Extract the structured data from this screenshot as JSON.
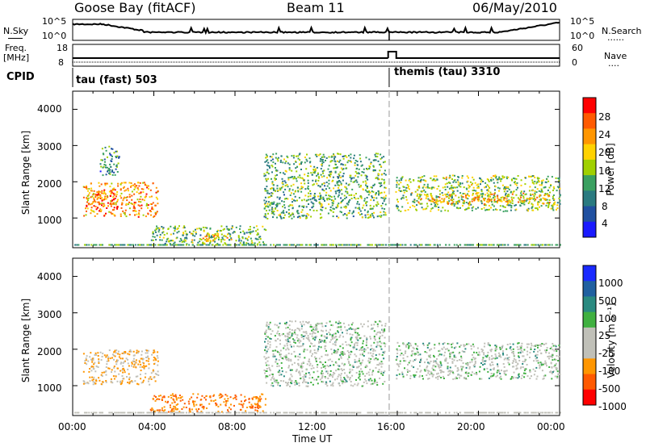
{
  "header": {
    "station": "Goose Bay (fitACF)",
    "beam": "Beam 11",
    "date": "06/May/2010"
  },
  "noise_panel": {
    "left_label": "N.Sky",
    "right_label": "N.Search",
    "left_ticks": [
      "10^5",
      "10^0"
    ],
    "right_ticks": [
      "10^5",
      "10^0"
    ],
    "right_dots": "......"
  },
  "freq_panel": {
    "left_label_line1": "Freq.",
    "left_label_line2": "[MHz]",
    "left_ticks": [
      "18",
      "8"
    ],
    "right_ticks": [
      "60",
      "0"
    ],
    "right_label": "Nave",
    "right_dots": "...."
  },
  "cpid_panel": {
    "label": "CPID",
    "segments": [
      {
        "name": "tau (fast)",
        "id": "503",
        "text": "tau (fast) 503"
      },
      {
        "name": "themis (tau)",
        "id": "3310",
        "text": "themis (tau) 3310"
      }
    ]
  },
  "time_axis": {
    "label": "Time UT",
    "ticks": [
      "00:00",
      "04:00",
      "08:00",
      "12:00",
      "16:00",
      "20:00",
      "00:00"
    ]
  },
  "range_axis": {
    "label": "Slant Range [km]",
    "ticks": [
      "4000",
      "3000",
      "2000",
      "1000"
    ]
  },
  "power_colorbar": {
    "label": "Power [dB]",
    "ticks": [
      "28",
      "24",
      "20",
      "16",
      "12",
      "8",
      "4"
    ],
    "colors": [
      "#ff0000",
      "#ff5a00",
      "#ff9600",
      "#ffd200",
      "#a0d000",
      "#3aa060",
      "#2a7a80",
      "#2050a0",
      "#1a1aff"
    ]
  },
  "velocity_colorbar": {
    "label": "Velocity [m s⁻¹]",
    "ticks": [
      "1000",
      "500",
      "100",
      "25",
      "-25",
      "-100",
      "-500",
      "-1000"
    ],
    "colors": [
      "#1a2aff",
      "#2060a0",
      "#2a8a80",
      "#40b040",
      "#c0c0b8",
      "#c0c0b8",
      "#ff9600",
      "#ff5a00",
      "#ff0000"
    ]
  },
  "chart_data": {
    "type": "heatmap",
    "title": "Goose Bay (fitACF)",
    "xlabel": "Time UT",
    "ylabel": "Slant Range [km]",
    "xlim_hours": [
      0,
      24
    ],
    "ylim_km": [
      180,
      4500
    ],
    "mode_change_hour": 15.6,
    "power_regions": [
      {
        "t0": 0.5,
        "t1": 4.2,
        "r0": 1050,
        "r1": 2000,
        "value_dB": 22
      },
      {
        "t0": 1.0,
        "t1": 2.2,
        "r0": 1250,
        "r1": 1800,
        "value_dB": 26
      },
      {
        "t0": 1.3,
        "t1": 2.3,
        "r0": 2200,
        "r1": 3000,
        "value_dB": 8
      },
      {
        "t0": 3.8,
        "t1": 9.5,
        "r0": 300,
        "r1": 800,
        "value_dB": 12
      },
      {
        "t0": 5.8,
        "t1": 7.8,
        "r0": 380,
        "r1": 600,
        "value_dB": 20
      },
      {
        "t0": 9.4,
        "t1": 15.4,
        "r0": 1000,
        "r1": 2800,
        "value_dB": 12
      },
      {
        "t0": 15.9,
        "t1": 24.0,
        "r0": 1200,
        "r1": 2200,
        "value_dB": 14
      },
      {
        "t0": 17.0,
        "t1": 23.5,
        "r0": 1400,
        "r1": 1700,
        "value_dB": 20
      }
    ],
    "velocity_regions": [
      {
        "t0": 0.5,
        "t1": 4.2,
        "r0": 1050,
        "r1": 2000,
        "value_ms": -100
      },
      {
        "t0": 3.8,
        "t1": 9.5,
        "r0": 300,
        "r1": 800,
        "value_ms": -300
      },
      {
        "t0": 9.4,
        "t1": 15.4,
        "r0": 1000,
        "r1": 2800,
        "value_ms": 0
      },
      {
        "t0": 15.9,
        "t1": 24.0,
        "r0": 1200,
        "r1": 2200,
        "value_ms": 0
      }
    ]
  }
}
